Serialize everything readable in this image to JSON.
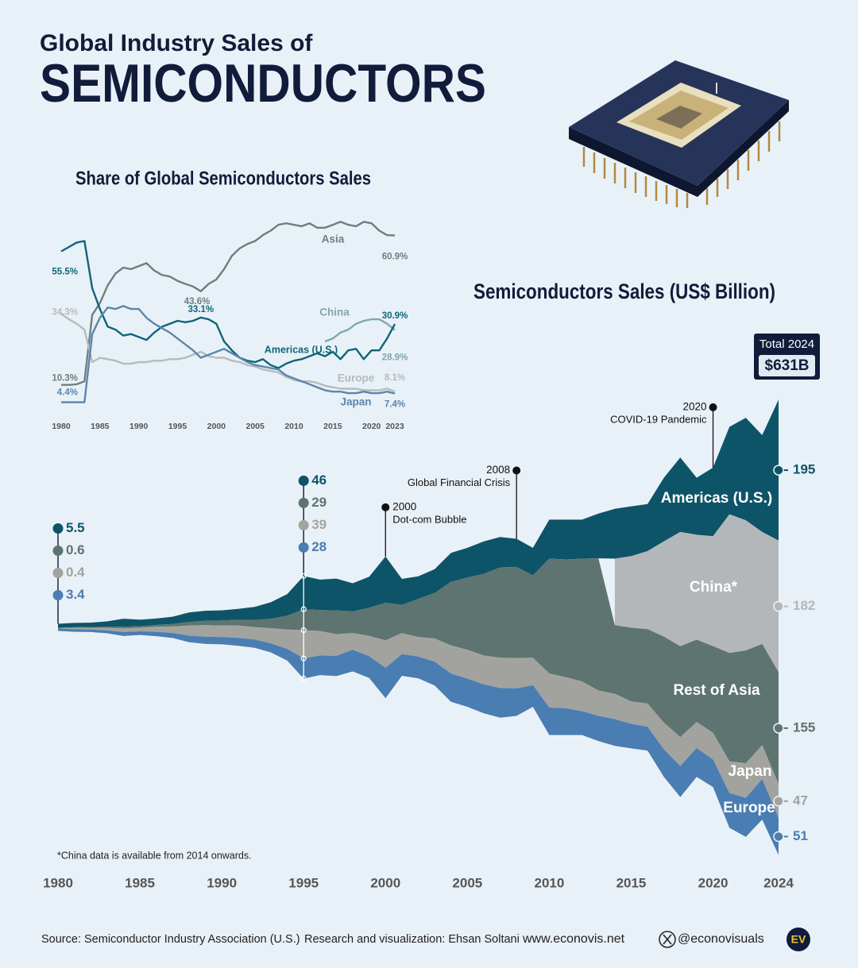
{
  "header": {
    "kicker": "Global Industry Sales of",
    "title": "SEMICONDUCTORS"
  },
  "chart_data": [
    {
      "type": "line",
      "title": "Share of Global Semiconductors Sales",
      "x": [
        1980,
        1981,
        1982,
        1983,
        1984,
        1985,
        1986,
        1987,
        1988,
        1989,
        1990,
        1991,
        1992,
        1993,
        1994,
        1995,
        1996,
        1997,
        1998,
        1999,
        2000,
        2001,
        2002,
        2003,
        2004,
        2005,
        2006,
        2007,
        2008,
        2009,
        2010,
        2011,
        2012,
        2013,
        2014,
        2015,
        2016,
        2017,
        2018,
        2019,
        2020,
        2021,
        2022,
        2023
      ],
      "xlim": [
        1980,
        2023
      ],
      "xticks": [
        1980,
        1985,
        1990,
        1995,
        2000,
        2005,
        2010,
        2015,
        2020,
        2023
      ],
      "series": [
        {
          "name": "Asia",
          "color": "#6a817d",
          "values": [
            10.3,
            10.3,
            10.5,
            11.5,
            34,
            38,
            44,
            48,
            50,
            49.5,
            50.5,
            51.5,
            49,
            47.5,
            47,
            45.5,
            44.5,
            43.6,
            42,
            44.5,
            46,
            49.5,
            54,
            56.5,
            58,
            59,
            61,
            62.5,
            64.5,
            65,
            64.5,
            64,
            65,
            63.5,
            63.5,
            64.5,
            65.5,
            64.5,
            64,
            65.5,
            65,
            62.5,
            61,
            60.9
          ],
          "value_labels": [
            "10.3%",
            null,
            null,
            null,
            null,
            null,
            null,
            null,
            null,
            null,
            null,
            null,
            null,
            null,
            null,
            null,
            null,
            "43.6%",
            null,
            null,
            null,
            null,
            null,
            null,
            null,
            null,
            null,
            null,
            null,
            null,
            null,
            null,
            null,
            null,
            null,
            null,
            null,
            null,
            null,
            null,
            null,
            null,
            null,
            "60.9%"
          ]
        },
        {
          "name": "China",
          "color": "#7fa9a8",
          "values": [
            null,
            null,
            null,
            null,
            null,
            null,
            null,
            null,
            null,
            null,
            null,
            null,
            null,
            null,
            null,
            null,
            null,
            null,
            null,
            null,
            null,
            null,
            null,
            null,
            null,
            null,
            null,
            null,
            null,
            null,
            null,
            null,
            null,
            null,
            25,
            26,
            28,
            29,
            31,
            32,
            32.5,
            32.5,
            31,
            28.9
          ],
          "value_labels": [
            null,
            null,
            null,
            null,
            null,
            null,
            null,
            null,
            null,
            null,
            null,
            null,
            null,
            null,
            null,
            null,
            null,
            null,
            null,
            null,
            null,
            null,
            null,
            null,
            null,
            null,
            null,
            null,
            null,
            null,
            null,
            null,
            null,
            null,
            null,
            null,
            null,
            null,
            null,
            null,
            null,
            null,
            null,
            "28.9%"
          ]
        },
        {
          "name": "Americas (U.S.)",
          "color": "#0e6677",
          "values": [
            55.5,
            57,
            58.5,
            59,
            43,
            36,
            30,
            29,
            27,
            27.5,
            26.5,
            25.5,
            28,
            30,
            31,
            32,
            31.5,
            32,
            33.1,
            32.5,
            31,
            25,
            22,
            19.5,
            18.5,
            18,
            19,
            17,
            16,
            17.5,
            18.5,
            19,
            20,
            21,
            20,
            21.5,
            19,
            22,
            22.5,
            19,
            22,
            22,
            26,
            30.9
          ],
          "value_labels": [
            "55.5%",
            null,
            null,
            null,
            null,
            null,
            null,
            null,
            null,
            null,
            null,
            null,
            null,
            null,
            null,
            null,
            null,
            null,
            "33.1%",
            null,
            null,
            null,
            null,
            null,
            null,
            null,
            null,
            null,
            null,
            null,
            null,
            null,
            null,
            null,
            null,
            null,
            null,
            null,
            null,
            null,
            null,
            null,
            null,
            "30.9%"
          ]
        },
        {
          "name": "Europe",
          "color": "#b5bcbb",
          "values": [
            34.3,
            32.5,
            31,
            29,
            18,
            19.5,
            19,
            18.5,
            17.5,
            17.5,
            18,
            18,
            18.5,
            18.5,
            19,
            19,
            19.5,
            20.5,
            21.5,
            20,
            19.5,
            19.5,
            18.5,
            18,
            17,
            16.5,
            15.5,
            15,
            14.5,
            13,
            12,
            11.5,
            11.5,
            11,
            10,
            9.5,
            9,
            9,
            9,
            8.5,
            8.5,
            8.5,
            9,
            8.1
          ],
          "value_labels": [
            "34.3%",
            null,
            null,
            null,
            null,
            null,
            null,
            null,
            null,
            null,
            null,
            null,
            null,
            null,
            null,
            null,
            null,
            null,
            null,
            null,
            null,
            null,
            null,
            null,
            null,
            null,
            null,
            null,
            null,
            null,
            null,
            null,
            null,
            null,
            null,
            null,
            null,
            null,
            null,
            null,
            null,
            null,
            null,
            "8.1%"
          ]
        },
        {
          "name": "Japan",
          "color": "#5b86ad",
          "values": [
            4.4,
            4.4,
            4.4,
            4.4,
            27.5,
            33,
            36.5,
            36,
            37,
            36,
            36,
            33,
            31,
            29.5,
            28,
            26,
            24,
            22,
            19.5,
            20.5,
            21.5,
            22.5,
            21,
            19.5,
            18,
            17,
            16.5,
            16,
            15.5,
            13.5,
            12.5,
            11.5,
            10.5,
            9.5,
            8.5,
            8,
            8,
            7.5,
            7.5,
            8,
            7.5,
            7.5,
            8,
            7.4
          ],
          "value_labels": [
            "4.4%",
            null,
            null,
            null,
            null,
            null,
            null,
            null,
            null,
            null,
            null,
            null,
            null,
            null,
            null,
            null,
            null,
            null,
            null,
            null,
            null,
            null,
            null,
            null,
            null,
            null,
            null,
            null,
            null,
            null,
            null,
            null,
            null,
            null,
            null,
            null,
            null,
            null,
            null,
            null,
            null,
            null,
            null,
            "7.4%"
          ]
        }
      ]
    },
    {
      "type": "stream",
      "title": "Semiconductors Sales (US$ Billion)",
      "x": [
        1980,
        1981,
        1982,
        1983,
        1984,
        1985,
        1986,
        1987,
        1988,
        1989,
        1990,
        1991,
        1992,
        1993,
        1994,
        1995,
        1996,
        1997,
        1998,
        1999,
        2000,
        2001,
        2002,
        2003,
        2004,
        2005,
        2006,
        2007,
        2008,
        2009,
        2010,
        2011,
        2012,
        2013,
        2014,
        2015,
        2016,
        2017,
        2018,
        2019,
        2020,
        2021,
        2022,
        2023,
        2024
      ],
      "xlim": [
        1980,
        2024
      ],
      "xticks": [
        1980,
        1985,
        1990,
        1995,
        2000,
        2005,
        2010,
        2015,
        2020,
        2024
      ],
      "labeled_x": [
        1980,
        1995,
        2024
      ],
      "series": [
        {
          "name": "Americas (U.S.)",
          "color": "#0d5468",
          "values": [
            5.5,
            6,
            6,
            7.5,
            11,
            9,
            9,
            10,
            13,
            14,
            14,
            15,
            18,
            23,
            30,
            46,
            42,
            44,
            39,
            43,
            64,
            36,
            31,
            33,
            40,
            41,
            45,
            42,
            39,
            38,
            54,
            55,
            54,
            62,
            69,
            69,
            65,
            88,
            103,
            79,
            95,
            121,
            142,
            134,
            195
          ]
        },
        {
          "name": "China*",
          "color": "#b4b7ba",
          "values": [
            null,
            null,
            null,
            null,
            null,
            null,
            null,
            null,
            null,
            null,
            null,
            null,
            null,
            null,
            null,
            null,
            null,
            null,
            null,
            null,
            null,
            null,
            null,
            null,
            null,
            null,
            null,
            null,
            null,
            null,
            null,
            null,
            null,
            null,
            92,
            99,
            108,
            132,
            158,
            145,
            152,
            192,
            180,
            155,
            182
          ]
        },
        {
          "name": "Rest of Asia",
          "color": "#5e7470",
          "values": [
            0.6,
            0.8,
            1,
            1.5,
            2.5,
            2,
            2.5,
            3.5,
            5,
            6,
            7,
            8,
            10,
            13,
            19,
            29,
            29,
            33,
            30,
            39,
            52,
            39,
            53,
            63,
            88,
            100,
            113,
            125,
            126,
            114,
            159,
            163,
            170,
            183,
            95,
            102,
            103,
            119,
            126,
            114,
            120,
            150,
            156,
            140,
            155
          ]
        },
        {
          "name": "Japan",
          "color": "#a2a39f",
          "values": [
            0.4,
            2,
            2.5,
            3.5,
            5,
            5,
            7,
            9,
            14,
            16,
            16,
            17,
            17,
            21,
            27,
            39,
            34,
            30,
            23,
            28,
            38,
            29,
            27,
            32,
            39,
            40,
            40,
            42,
            42,
            38,
            47,
            43,
            41,
            35,
            35,
            31,
            32,
            37,
            40,
            36,
            37,
            44,
            48,
            47,
            47
          ]
        },
        {
          "name": "Europe",
          "color": "#4a7db2",
          "values": [
            3.4,
            3.5,
            3.5,
            4,
            5.5,
            5,
            6,
            7,
            9,
            10,
            10,
            11,
            11.5,
            12.5,
            16,
            28,
            27,
            28,
            30,
            30,
            42,
            30,
            30,
            33,
            39,
            39,
            40,
            41,
            38,
            30,
            38,
            37,
            33,
            35,
            37,
            34,
            33,
            38,
            43,
            40,
            38,
            48,
            54,
            56,
            51
          ]
        }
      ],
      "annotations": [
        {
          "x": 2000,
          "label": "Dot-com Bubble"
        },
        {
          "x": 2008,
          "label": "Global Financial Crisis"
        },
        {
          "x": 2020,
          "label": "COVID-19 Pandemic"
        }
      ],
      "total": {
        "label": "Total 2024",
        "value": 631,
        "value_label": "$631B"
      },
      "note": "*China data is available from 2014 onwards."
    }
  ],
  "footer": {
    "source": "Source: Semiconductor Industry Association (U.S.)",
    "credit": "Research and visualization: Ehsan Soltani",
    "website": "www.econovis.net",
    "handle": "@econovisuals",
    "logo": "EV"
  }
}
